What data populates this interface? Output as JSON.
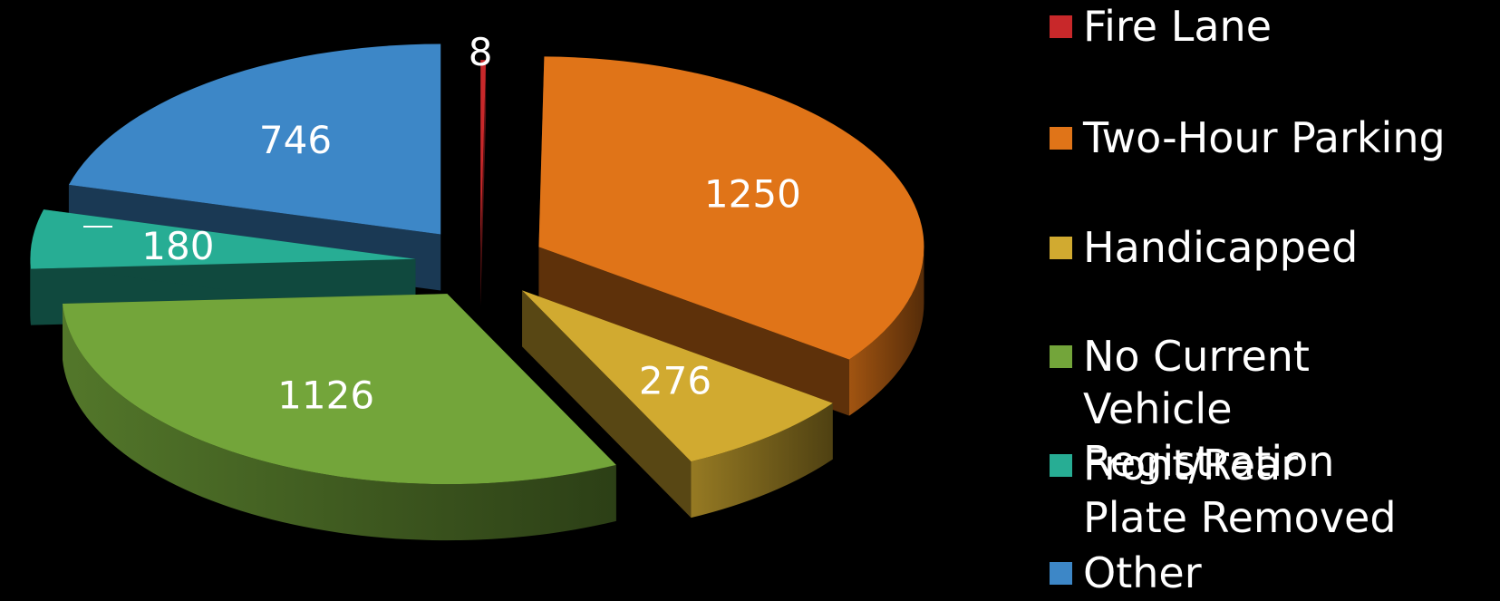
{
  "chart_data": {
    "type": "pie",
    "style": "3d-exploded",
    "categories": [
      "Fire Lane",
      "Two-Hour Parking",
      "Handicapped",
      "No Current Vehicle Registration",
      "Front/Rear Plate Removed",
      "Other"
    ],
    "values": [
      8,
      1250,
      276,
      1126,
      180,
      746
    ],
    "colors": [
      "#c8282a",
      "#e07418",
      "#d1aa30",
      "#73a53a",
      "#27ad94",
      "#3d87c7"
    ],
    "data_labels": [
      "8",
      "1250",
      "276",
      "1126",
      "180",
      "746"
    ],
    "legend": {
      "position": "right",
      "items": [
        {
          "label": "Fire Lane",
          "color": "#c8282a"
        },
        {
          "label": "Two-Hour Parking",
          "color": "#e07418"
        },
        {
          "label": "Handicapped",
          "color": "#d1aa30"
        },
        {
          "label": "No Current Vehicle Registration",
          "color": "#73a53a"
        },
        {
          "label": "Front/Rear Plate Removed",
          "color": "#27ad94"
        },
        {
          "label": "Other",
          "color": "#3d87c7"
        }
      ]
    }
  }
}
